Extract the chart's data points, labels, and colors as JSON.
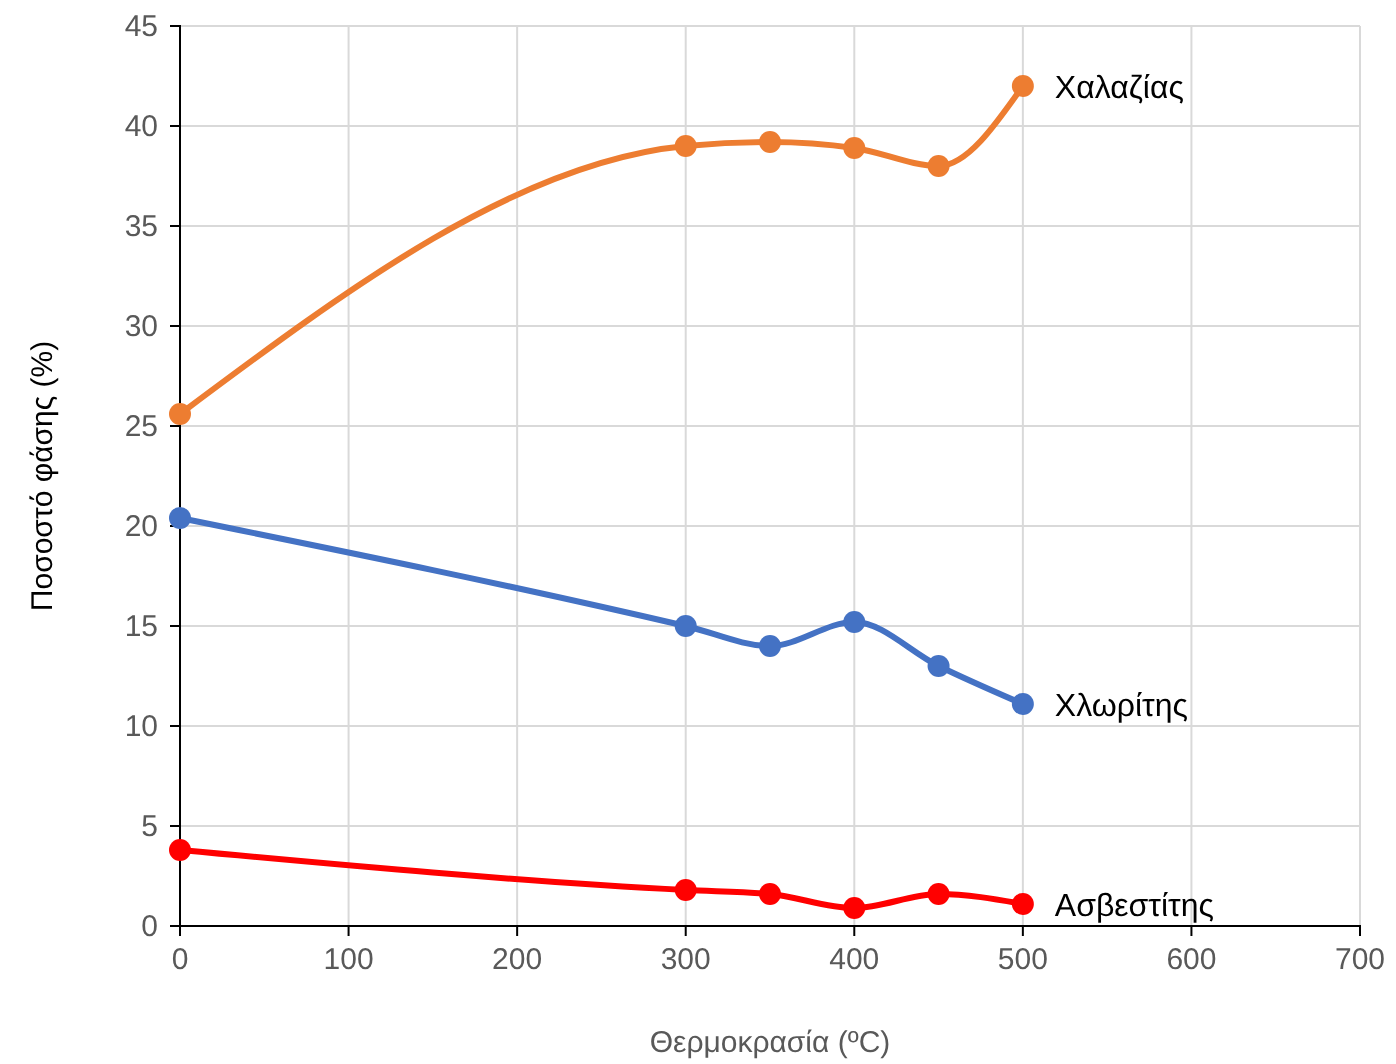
{
  "chart_data": {
    "type": "line",
    "xlabel": "Θερμοκρασία (ºC)",
    "ylabel": "Ποσοστό φάσης (%)",
    "xlim": [
      0,
      700
    ],
    "xticks": [
      0,
      100,
      200,
      300,
      400,
      500,
      600,
      700
    ],
    "ylim": [
      0,
      45
    ],
    "yticks": [
      0,
      5,
      10,
      15,
      20,
      25,
      30,
      35,
      40,
      45
    ],
    "grid": true,
    "marker": "circle",
    "legend": false,
    "series": [
      {
        "name": "Χαλαζίας",
        "color": "#ed7d31",
        "x": [
          0,
          300,
          350,
          400,
          450,
          500
        ],
        "values": [
          25.6,
          39.0,
          39.2,
          38.9,
          38.0,
          42.0
        ]
      },
      {
        "name": "Χλωρίτης",
        "color": "#4472c4",
        "x": [
          0,
          300,
          350,
          400,
          450,
          500
        ],
        "values": [
          20.4,
          15.0,
          14.0,
          15.2,
          13.0,
          11.1
        ]
      },
      {
        "name": "Ασβεστίτης",
        "color": "#ff0000",
        "x": [
          0,
          300,
          350,
          400,
          450,
          500
        ],
        "values": [
          3.8,
          1.8,
          1.6,
          0.9,
          1.6,
          1.1
        ]
      }
    ]
  }
}
